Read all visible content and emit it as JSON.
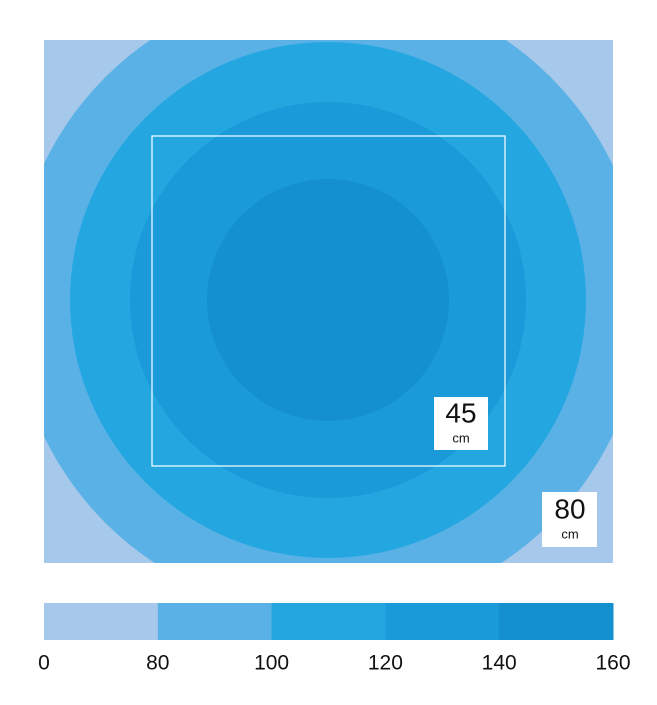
{
  "legend": {
    "ticks": [
      0,
      80,
      100,
      120,
      140,
      160
    ],
    "colors": [
      "#a6c8eb",
      "#5ab1e6",
      "#24a7e1",
      "#1a9ad8",
      "#1390cd"
    ]
  },
  "labels": [
    {
      "value": "45",
      "unit": "cm"
    },
    {
      "value": "80",
      "unit": "cm"
    }
  ]
}
